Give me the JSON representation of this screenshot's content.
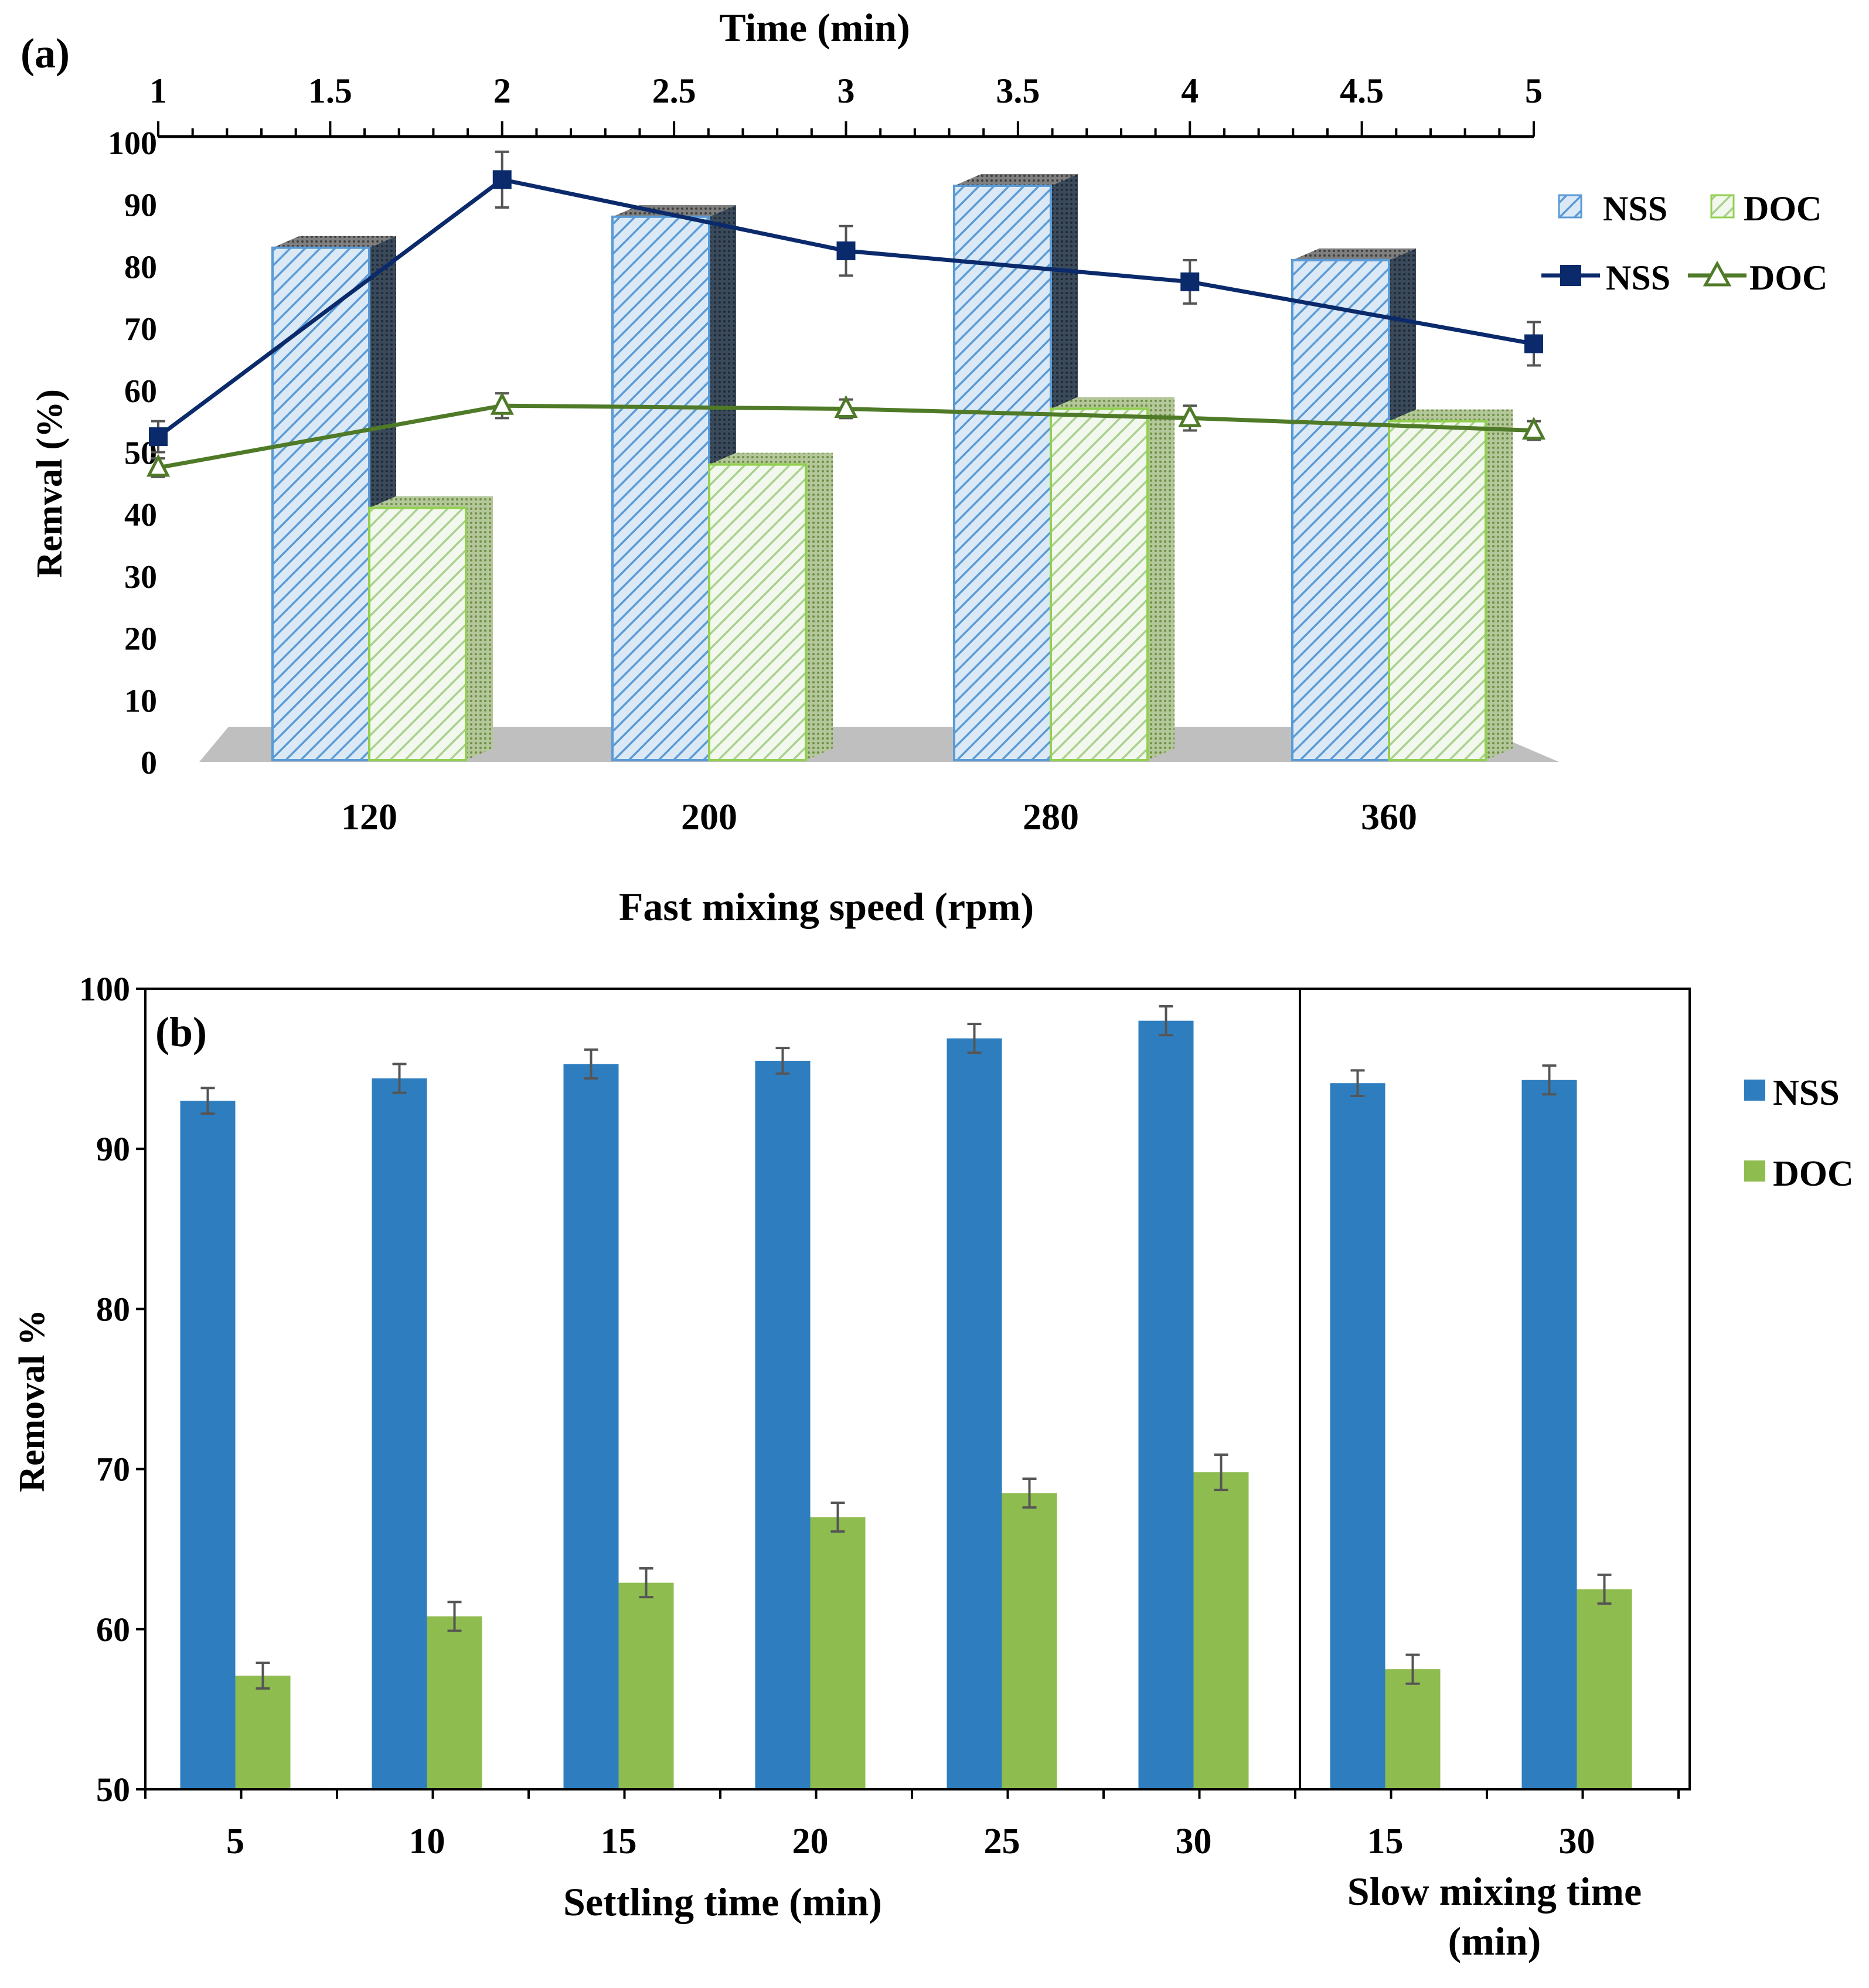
{
  "chart_data": [
    {
      "id": "a",
      "type": "bar",
      "panel_label": "(a)",
      "title": "",
      "ylabel": "Remval (%)",
      "ylim": [
        0,
        100
      ],
      "yticks": [
        0,
        10,
        20,
        30,
        40,
        50,
        60,
        70,
        80,
        90,
        100
      ],
      "bar_axis": {
        "xlabel": "Fast mixing speed (rpm)",
        "categories": [
          "120",
          "200",
          "280",
          "360"
        ]
      },
      "bar_series": [
        {
          "name": "NSS",
          "values": [
            83,
            88,
            93,
            81
          ],
          "color": "#9dc3e6",
          "stroke": "#5b9bd5"
        },
        {
          "name": "DOC",
          "values": [
            41,
            48,
            57,
            55
          ],
          "color": "#e2efd9",
          "stroke": "#92d050"
        }
      ],
      "line_axis": {
        "xlabel": "Time (min)",
        "ticks": [
          "1",
          "1.5",
          "2",
          "2.5",
          "3",
          "3.5",
          "4",
          "4.5",
          "5"
        ],
        "xlim": [
          1,
          5
        ]
      },
      "line_series": [
        {
          "name": "NSS",
          "marker": "square",
          "color": "#0b2a6b",
          "x": [
            1,
            2,
            3,
            4,
            5
          ],
          "y": [
            52.5,
            94,
            82.5,
            77.5,
            67.5
          ],
          "err": [
            2.5,
            4.5,
            4,
            3.5,
            3.5
          ]
        },
        {
          "name": "DOC",
          "marker": "triangle",
          "color": "#4f7a28",
          "x": [
            1,
            2,
            3,
            4,
            5
          ],
          "y": [
            47.5,
            57.5,
            57,
            55.5,
            53.5
          ],
          "err": [
            1.5,
            2,
            1.5,
            2,
            1.5
          ]
        }
      ],
      "legend_bars": [
        "NSS",
        "DOC"
      ],
      "legend_lines": [
        "NSS",
        "DOC"
      ],
      "legend_position": "right",
      "grid": false
    },
    {
      "id": "b",
      "type": "bar",
      "panel_label": "(b)",
      "title": "",
      "ylabel": "Removal %",
      "ylim": [
        50,
        100
      ],
      "yticks": [
        50,
        60,
        70,
        80,
        90,
        100
      ],
      "groups": [
        {
          "xlabel": "Settling time (min)",
          "categories": [
            "5",
            "10",
            "15",
            "20",
            "25",
            "30"
          ]
        },
        {
          "xlabel": "Slow mixing time (min)",
          "categories": [
            "15",
            "30"
          ]
        }
      ],
      "series": [
        {
          "name": "NSS",
          "color": "#2e7ebf",
          "values": [
            93,
            94.4,
            95.3,
            95.5,
            96.9,
            98,
            94.1,
            94.3
          ],
          "err": [
            0.8,
            0.9,
            0.9,
            0.8,
            0.9,
            0.9,
            0.8,
            0.9
          ]
        },
        {
          "name": "DOC",
          "color": "#8fbc4f",
          "values": [
            57.1,
            60.8,
            62.9,
            67,
            68.5,
            69.8,
            57.5,
            62.5
          ],
          "err": [
            0.8,
            0.9,
            0.9,
            0.9,
            0.9,
            1.1,
            0.9,
            0.9
          ]
        }
      ],
      "legend": [
        "NSS",
        "DOC"
      ],
      "legend_position": "right",
      "grid": false
    }
  ]
}
